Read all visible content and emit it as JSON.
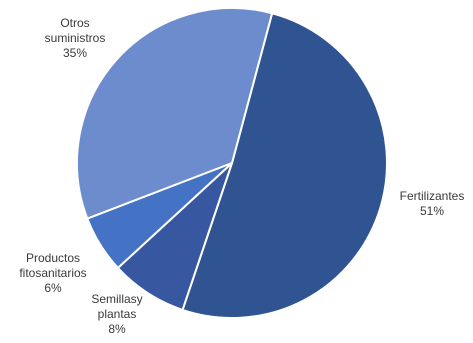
{
  "chart_data": {
    "type": "pie",
    "title": "",
    "start_angle_deg": 15,
    "direction": "clockwise",
    "slices": [
      {
        "name": "Fertilizantes",
        "label_lines": [
          "Fertilizantes"
        ],
        "pct_label": "51%",
        "value": 51,
        "color": "#2f5491"
      },
      {
        "name": "Semillas y plantas",
        "label_lines": [
          "Semillasy",
          "plantas"
        ],
        "pct_label": "8%",
        "value": 8,
        "color": "#3857a1"
      },
      {
        "name": "Productos fitosanitarios",
        "label_lines": [
          "Productos",
          "fitosanitarios"
        ],
        "pct_label": "6%",
        "value": 6,
        "color": "#4472c4"
      },
      {
        "name": "Otros suministros",
        "label_lines": [
          "Otros",
          "suministros"
        ],
        "pct_label": "35%",
        "value": 35,
        "color": "#6d8ccd"
      }
    ]
  }
}
